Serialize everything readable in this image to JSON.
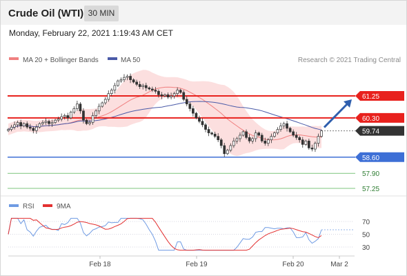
{
  "header": {
    "instrument": "Crude Oil (WTI)",
    "timeframe": "30 MIN"
  },
  "datetime": "Monday, February 22, 2021 1:19:43 AM CET",
  "legend": {
    "ma20_label": "MA 20 + Bollinger Bands",
    "ma50_label": "MA 50",
    "credit": "Research © 2021 Trading Central"
  },
  "rsi_legend": {
    "rsi_label": "RSI",
    "ma_label": "9MA"
  },
  "colors": {
    "resistance": "#e8211d",
    "support": "#3d6fd6",
    "target": "#2e7d32",
    "current": "#333333",
    "ma20": "#f08080",
    "ma50": "#4a5aa8",
    "band_fill": "#fbd9d9",
    "arrow": "#2f5fae",
    "rsi_line": "#6f9be3",
    "rsi_ma": "#e33030"
  },
  "chart_data": {
    "type": "candlestick",
    "y_range": [
      57.0,
      61.7
    ],
    "levels": [
      {
        "value": 61.25,
        "label": "61.25",
        "kind": "resistance"
      },
      {
        "value": 60.3,
        "label": "60.30",
        "kind": "resistance"
      },
      {
        "value": 59.74,
        "label": "59.74",
        "kind": "current"
      },
      {
        "value": 58.6,
        "label": "58.60",
        "kind": "support"
      },
      {
        "value": 57.9,
        "label": "57.90",
        "kind": "target"
      },
      {
        "value": 57.25,
        "label": "57.25",
        "kind": "target"
      }
    ],
    "x_ticks": [
      "Feb 18",
      "Feb 19",
      "Feb 20",
      "Mar 2"
    ],
    "price_close": [
      59.8,
      59.9,
      60.0,
      60.1,
      59.95,
      60.05,
      59.9,
      59.85,
      59.75,
      59.9,
      60.05,
      60.1,
      60.15,
      60.05,
      60.1,
      60.2,
      60.25,
      60.35,
      60.4,
      60.3,
      60.55,
      60.7,
      60.9,
      60.6,
      60.2,
      60.05,
      60.1,
      60.4,
      60.6,
      60.8,
      60.95,
      61.1,
      61.35,
      61.5,
      61.7,
      61.9,
      61.95,
      62.05,
      62.1,
      61.95,
      61.85,
      61.75,
      61.65,
      61.7,
      61.6,
      61.55,
      61.5,
      61.45,
      61.3,
      61.25,
      61.3,
      61.2,
      61.25,
      61.35,
      61.5,
      61.4,
      61.1,
      60.9,
      60.7,
      60.5,
      60.3,
      60.15,
      60.0,
      59.8,
      59.65,
      59.6,
      59.5,
      59.35,
      59.1,
      58.75,
      58.9,
      59.1,
      59.3,
      59.4,
      59.55,
      59.7,
      59.45,
      59.3,
      59.4,
      59.65,
      59.55,
      59.3,
      59.2,
      59.35,
      59.5,
      59.65,
      59.8,
      59.95,
      60.05,
      59.85,
      59.7,
      59.55,
      59.45,
      59.35,
      59.15,
      59.3,
      59.0,
      58.95,
      59.2,
      59.5,
      59.74
    ],
    "rsi": {
      "range": [
        20,
        80
      ],
      "ticks": [
        70,
        50,
        30
      ],
      "last_rsi": 57,
      "last_ma": 48
    }
  }
}
